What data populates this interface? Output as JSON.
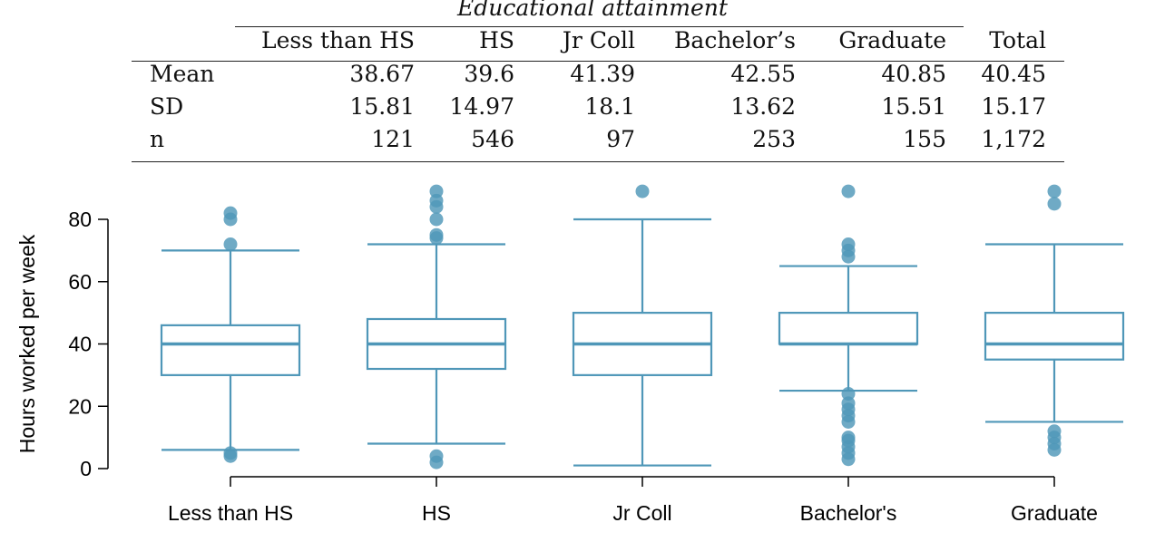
{
  "table": {
    "spanner": "Educational attainment",
    "columns": [
      "Less than HS",
      "HS",
      "Jr Coll",
      "Bachelor’s",
      "Graduate",
      "Total"
    ],
    "rows": [
      {
        "label": "Mean",
        "values": [
          "38.67",
          "39.6",
          "41.39",
          "42.55",
          "40.85",
          "40.45"
        ]
      },
      {
        "label": "SD",
        "values": [
          "15.81",
          "14.97",
          "18.1",
          "13.62",
          "15.51",
          "15.17"
        ]
      },
      {
        "label": "n",
        "values": [
          "121",
          "546",
          "97",
          "253",
          "155",
          "1,172"
        ]
      }
    ]
  },
  "chart_data": {
    "type": "boxplot",
    "ylabel": "Hours worked per week",
    "xlabel": "",
    "ylim": [
      0,
      90
    ],
    "yticks": [
      0,
      20,
      40,
      60,
      80
    ],
    "grid": false,
    "color": "#4f97b8",
    "categories": [
      "Less than HS",
      "HS",
      "Jr Coll",
      "Bachelor's",
      "Graduate"
    ],
    "boxes": [
      {
        "category": "Less than HS",
        "whisker_low": 6,
        "q1": 30,
        "median": 40,
        "q3": 46,
        "whisker_high": 70,
        "outliers": [
          4,
          5,
          72,
          80,
          82
        ]
      },
      {
        "category": "HS",
        "whisker_low": 8,
        "q1": 32,
        "median": 40,
        "q3": 48,
        "whisker_high": 72,
        "outliers": [
          2,
          4,
          74,
          75,
          80,
          84,
          86,
          89
        ]
      },
      {
        "category": "Jr Coll",
        "whisker_low": 1,
        "q1": 30,
        "median": 40,
        "q3": 50,
        "whisker_high": 80,
        "outliers": [
          89
        ]
      },
      {
        "category": "Bachelor's",
        "whisker_low": 25,
        "q1": 40,
        "median": 40,
        "q3": 50,
        "whisker_high": 65,
        "outliers": [
          3,
          5,
          7,
          9,
          10,
          15,
          17,
          19,
          21,
          24,
          68,
          70,
          72,
          89
        ]
      },
      {
        "category": "Graduate",
        "whisker_low": 15,
        "q1": 35,
        "median": 40,
        "q3": 50,
        "whisker_high": 72,
        "outliers": [
          6,
          8,
          10,
          12,
          85,
          89
        ]
      }
    ]
  }
}
